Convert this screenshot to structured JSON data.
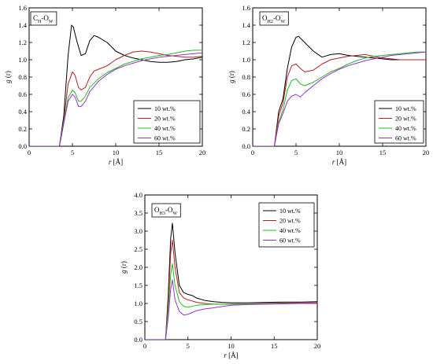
{
  "figure": {
    "series_colors": [
      "#000000",
      "#b22222",
      "#22bb22",
      "#9933cc"
    ]
  },
  "chart_data": [
    {
      "type": "line",
      "title": "C",
      "title_sub": "H",
      "title_mid": "-O",
      "title_sub2": "W",
      "xlabel_italic": "r",
      "xlabel_rest": " [Å]",
      "ylabel_italic": "g",
      "ylabel_rest": " (r)",
      "xlim": [
        0,
        20
      ],
      "ylim": [
        0,
        1.6
      ],
      "xticks": [
        0,
        5,
        10,
        15,
        20
      ],
      "yticks": [
        0.0,
        0.2,
        0.4,
        0.6,
        0.8,
        1.0,
        1.2,
        1.4,
        1.6
      ],
      "ytick_labels": [
        "0.0",
        "0.2",
        "0.4",
        "0.6",
        "0.8",
        "1.0",
        "1.2",
        "1.4",
        "1.6"
      ],
      "grid": false,
      "legend_position": "bottom-right",
      "series": [
        {
          "name": "10 wt.%",
          "x": [
            0,
            3.5,
            4.0,
            4.5,
            4.9,
            5.1,
            5.5,
            6.0,
            6.5,
            7.0,
            7.5,
            8.0,
            9.0,
            10,
            11,
            12,
            13,
            14,
            15,
            16,
            17,
            18,
            19,
            20
          ],
          "y": [
            0,
            0,
            0.35,
            1.05,
            1.4,
            1.38,
            1.22,
            1.05,
            1.07,
            1.22,
            1.28,
            1.26,
            1.2,
            1.1,
            1.05,
            1.02,
            1.0,
            0.98,
            0.97,
            0.97,
            0.98,
            1.0,
            1.01,
            1.03
          ]
        },
        {
          "name": "20 wt.%",
          "x": [
            0,
            3.5,
            4.0,
            4.5,
            5.0,
            5.3,
            5.7,
            6.0,
            6.5,
            7.0,
            7.5,
            8.0,
            9.0,
            10,
            11,
            12,
            13,
            14,
            15,
            16,
            17,
            18,
            19,
            20
          ],
          "y": [
            0,
            0,
            0.3,
            0.72,
            0.86,
            0.82,
            0.68,
            0.65,
            0.68,
            0.8,
            0.87,
            0.89,
            0.93,
            1.0,
            1.05,
            1.09,
            1.1,
            1.09,
            1.07,
            1.05,
            1.04,
            1.03,
            1.03,
            1.04
          ]
        },
        {
          "name": "40 wt.%",
          "x": [
            0,
            3.5,
            4.0,
            4.5,
            5.0,
            5.3,
            5.7,
            6.0,
            6.5,
            7.0,
            8.0,
            9.0,
            10,
            11,
            12,
            13,
            14,
            15,
            16,
            17,
            18,
            19,
            20
          ],
          "y": [
            0,
            0,
            0.28,
            0.56,
            0.65,
            0.62,
            0.52,
            0.52,
            0.58,
            0.68,
            0.78,
            0.85,
            0.9,
            0.95,
            0.98,
            1.01,
            1.03,
            1.05,
            1.06,
            1.08,
            1.1,
            1.11,
            1.11
          ]
        },
        {
          "name": "60 wt.%",
          "x": [
            0,
            3.5,
            4.0,
            4.5,
            5.0,
            5.3,
            5.7,
            6.0,
            6.5,
            7.0,
            8.0,
            9.0,
            10,
            11,
            12,
            13,
            14,
            15,
            16,
            17,
            18,
            19,
            20
          ],
          "y": [
            0,
            0,
            0.26,
            0.52,
            0.6,
            0.57,
            0.46,
            0.46,
            0.52,
            0.63,
            0.75,
            0.83,
            0.89,
            0.93,
            0.96,
            0.99,
            1.01,
            1.03,
            1.04,
            1.05,
            1.06,
            1.07,
            1.08
          ]
        }
      ]
    },
    {
      "type": "line",
      "title": "O",
      "title_sub": "H2",
      "title_mid": "-O",
      "title_sub2": "W",
      "xlabel_italic": "r",
      "xlabel_rest": " [Å]",
      "ylabel_italic": "g",
      "ylabel_rest": " (r)",
      "xlim": [
        0,
        20
      ],
      "ylim": [
        0,
        1.6
      ],
      "xticks": [
        0,
        5,
        10,
        15,
        20
      ],
      "yticks": [
        0.0,
        0.2,
        0.4,
        0.6,
        0.8,
        1.0,
        1.2,
        1.4,
        1.6
      ],
      "ytick_labels": [
        "0.0",
        "0.2",
        "0.4",
        "0.6",
        "0.8",
        "1.0",
        "1.2",
        "1.4",
        "1.6"
      ],
      "grid": false,
      "legend_position": "bottom-right",
      "series": [
        {
          "name": "10 wt.%",
          "x": [
            0,
            2.5,
            3.0,
            3.5,
            4.0,
            4.5,
            5.0,
            5.3,
            6.0,
            7.0,
            8.0,
            9.0,
            10,
            11,
            12,
            13,
            14,
            15,
            16,
            17,
            18,
            19,
            20
          ],
          "y": [
            0,
            0,
            0.4,
            0.55,
            0.9,
            1.15,
            1.26,
            1.27,
            1.2,
            1.1,
            1.03,
            1.06,
            1.07,
            1.05,
            1.04,
            1.03,
            1.02,
            1.01,
            1.0,
            1.0,
            1.0,
            1.0,
            1.0
          ]
        },
        {
          "name": "20 wt.%",
          "x": [
            0,
            2.5,
            3.0,
            3.5,
            4.0,
            4.5,
            5.0,
            5.5,
            6.0,
            7.0,
            8.0,
            9.0,
            10,
            11,
            12,
            13,
            14,
            15,
            16,
            17,
            18,
            19,
            20
          ],
          "y": [
            0,
            0,
            0.35,
            0.5,
            0.8,
            0.93,
            0.95,
            0.9,
            0.86,
            0.88,
            0.95,
            1.0,
            1.02,
            1.04,
            1.05,
            1.06,
            1.04,
            1.02,
            1.01,
            1.0,
            1.0,
            1.0,
            1.0
          ]
        },
        {
          "name": "40 wt.%",
          "x": [
            0,
            2.5,
            3.0,
            3.5,
            4.0,
            4.5,
            5.0,
            5.5,
            6.0,
            7.0,
            8.0,
            9.0,
            10,
            11,
            12,
            13,
            14,
            15,
            16,
            17,
            18,
            19,
            20
          ],
          "y": [
            0,
            0,
            0.28,
            0.42,
            0.65,
            0.76,
            0.78,
            0.72,
            0.7,
            0.74,
            0.8,
            0.86,
            0.9,
            0.95,
            0.99,
            1.02,
            1.04,
            1.05,
            1.06,
            1.07,
            1.08,
            1.09,
            1.09
          ]
        },
        {
          "name": "60 wt.%",
          "x": [
            0,
            2.5,
            3.0,
            3.5,
            4.0,
            4.5,
            5.0,
            5.5,
            6.0,
            7.0,
            8.0,
            9.0,
            10,
            11,
            12,
            13,
            14,
            15,
            16,
            17,
            18,
            19,
            20
          ],
          "y": [
            0,
            0,
            0.26,
            0.38,
            0.52,
            0.58,
            0.6,
            0.57,
            0.62,
            0.7,
            0.78,
            0.84,
            0.89,
            0.93,
            0.96,
            0.99,
            1.01,
            1.03,
            1.05,
            1.06,
            1.07,
            1.08,
            1.09
          ]
        }
      ]
    },
    {
      "type": "line",
      "title": "O",
      "title_sub": "H3",
      "title_mid": "-O",
      "title_sub2": "W",
      "xlabel_italic": "r",
      "xlabel_rest": " [Å]",
      "ylabel_italic": "g",
      "ylabel_rest": " (r)",
      "xlim": [
        0,
        20
      ],
      "ylim": [
        0,
        4.0
      ],
      "xticks": [
        0,
        5,
        10,
        15,
        20
      ],
      "yticks": [
        0.0,
        0.5,
        1.0,
        1.5,
        2.0,
        2.5,
        3.0,
        3.5,
        4.0
      ],
      "ytick_labels": [
        "0.0",
        "0.5",
        "1.0",
        "1.5",
        "2.0",
        "2.5",
        "3.0",
        "3.5",
        "4.0"
      ],
      "grid": false,
      "legend_position": "top-right",
      "series": [
        {
          "name": "10 wt.%",
          "x": [
            0,
            2.4,
            2.7,
            3.0,
            3.2,
            3.5,
            4.0,
            4.5,
            5.0,
            5.5,
            6.0,
            7.0,
            8.0,
            9.0,
            10,
            12,
            14,
            16,
            18,
            20
          ],
          "y": [
            0,
            0,
            1.2,
            2.8,
            3.22,
            2.4,
            1.5,
            1.3,
            1.25,
            1.22,
            1.15,
            1.08,
            1.05,
            1.03,
            1.02,
            1.02,
            1.03,
            1.04,
            1.04,
            1.05
          ]
        },
        {
          "name": "20 wt.%",
          "x": [
            0,
            2.4,
            2.7,
            3.0,
            3.2,
            3.5,
            4.0,
            4.5,
            5.0,
            5.5,
            6.0,
            7.0,
            8.0,
            9.0,
            10,
            12,
            14,
            16,
            18,
            20
          ],
          "y": [
            0,
            0,
            1.0,
            2.4,
            2.75,
            2.0,
            1.3,
            1.15,
            1.1,
            1.07,
            1.03,
            1.0,
            0.98,
            0.98,
            0.98,
            0.99,
            1.0,
            1.01,
            1.01,
            1.02
          ]
        },
        {
          "name": "40 wt.%",
          "x": [
            0,
            2.4,
            2.7,
            3.0,
            3.2,
            3.5,
            4.0,
            4.5,
            5.0,
            5.5,
            6.0,
            7.0,
            8.0,
            9.0,
            10,
            12,
            14,
            16,
            18,
            20
          ],
          "y": [
            0,
            0,
            0.8,
            1.8,
            2.1,
            1.5,
            1.05,
            0.92,
            0.9,
            0.92,
            0.95,
            0.97,
            0.98,
            0.98,
            0.98,
            0.99,
            0.99,
            1.0,
            1.0,
            1.0
          ]
        },
        {
          "name": "60 wt.%",
          "x": [
            0,
            2.4,
            2.7,
            3.0,
            3.2,
            3.5,
            4.0,
            4.5,
            5.0,
            5.5,
            6.0,
            7.0,
            8.0,
            9.0,
            10,
            12,
            14,
            16,
            18,
            20
          ],
          "y": [
            0,
            0,
            0.6,
            1.4,
            1.65,
            1.1,
            0.78,
            0.68,
            0.7,
            0.75,
            0.8,
            0.85,
            0.88,
            0.92,
            0.95,
            0.97,
            0.98,
            0.99,
            1.0,
            1.0
          ]
        }
      ]
    }
  ]
}
